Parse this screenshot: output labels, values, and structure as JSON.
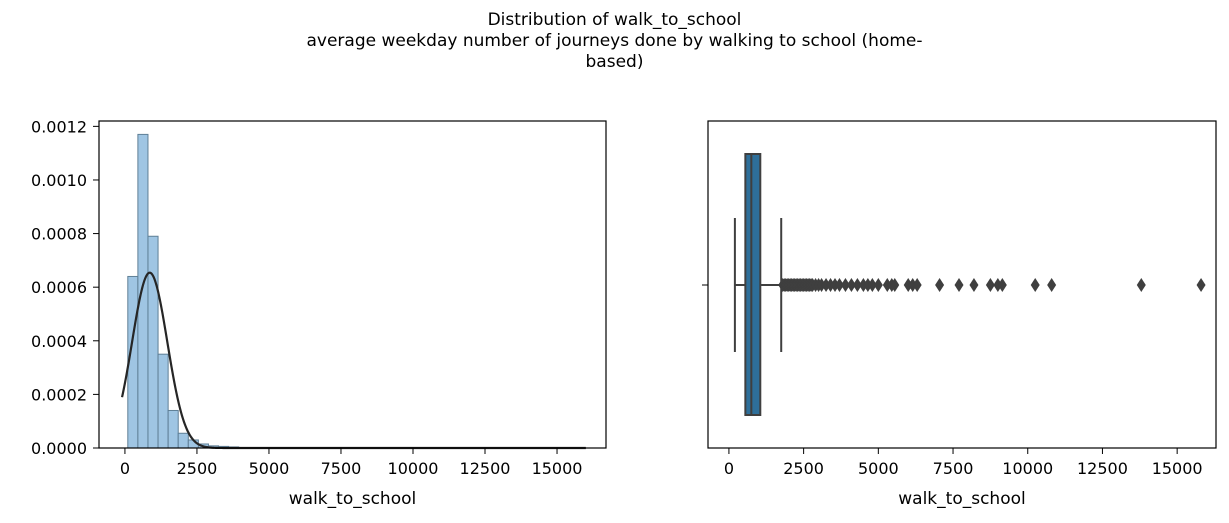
{
  "suptitle": {
    "line1": "Distribution of walk_to_school",
    "line2": "average weekday number of journeys done by walking to school (home-",
    "line3": "based)"
  },
  "chart_data": [
    {
      "type": "histogram",
      "xlabel": "walk_to_school",
      "ylabel": "",
      "xlim": [
        -900,
        16700
      ],
      "ylim": [
        0,
        0.00122
      ],
      "xticks": [
        0,
        2500,
        5000,
        7500,
        10000,
        12500,
        15000
      ],
      "xtick_labels": [
        "0",
        "2500",
        "5000",
        "7500",
        "10000",
        "12500",
        "15000"
      ],
      "yticks": [
        0,
        0.0002,
        0.0004,
        0.0006,
        0.0008,
        0.001,
        0.0012
      ],
      "ytick_labels": [
        "0.0000",
        "0.0002",
        "0.0004",
        "0.0006",
        "0.0008",
        "0.0010",
        "0.0012"
      ],
      "bar_color": "#9fc5e3",
      "bar_edge_color": "#5f7f96",
      "bins": [
        {
          "x0": 100,
          "x1": 450,
          "density": 0.00064
        },
        {
          "x0": 450,
          "x1": 800,
          "density": 0.00117
        },
        {
          "x0": 800,
          "x1": 1150,
          "density": 0.00079
        },
        {
          "x0": 1150,
          "x1": 1500,
          "density": 0.00035
        },
        {
          "x0": 1500,
          "x1": 1850,
          "density": 0.00014
        },
        {
          "x0": 1850,
          "x1": 2200,
          "density": 5.5e-05
        },
        {
          "x0": 2200,
          "x1": 2550,
          "density": 3e-05
        },
        {
          "x0": 2550,
          "x1": 2900,
          "density": 1.5e-05
        },
        {
          "x0": 2900,
          "x1": 3250,
          "density": 8e-06
        },
        {
          "x0": 3250,
          "x1": 3600,
          "density": 6e-06
        },
        {
          "x0": 3600,
          "x1": 3950,
          "density": 4e-06
        }
      ],
      "kde": {
        "color": "#262626",
        "mean": 860,
        "std": 610,
        "x_range": [
          -100,
          16000
        ]
      }
    },
    {
      "type": "boxplot",
      "xlabel": "walk_to_school",
      "xlim": [
        -700,
        16300
      ],
      "xticks": [
        0,
        2500,
        5000,
        7500,
        10000,
        12500,
        15000
      ],
      "xtick_labels": [
        "0",
        "2500",
        "5000",
        "7500",
        "10000",
        "12500",
        "15000"
      ],
      "box_color": "#2e6f9a",
      "line_color": "#3f3f3f",
      "whisker_low": 200,
      "q1": 550,
      "median": 750,
      "q3": 1050,
      "whisker_high": 1750,
      "outliers": [
        1800,
        1850,
        1900,
        1950,
        2000,
        2050,
        2100,
        2150,
        2200,
        2250,
        2300,
        2350,
        2400,
        2450,
        2500,
        2550,
        2600,
        2650,
        2700,
        2750,
        2800,
        2900,
        3000,
        3100,
        3250,
        3400,
        3550,
        3700,
        3900,
        4100,
        4300,
        4500,
        4650,
        4800,
        5000,
        5300,
        5450,
        5550,
        6000,
        6150,
        6300,
        7050,
        7700,
        8200,
        8750,
        9000,
        9150,
        10250,
        10800,
        13800,
        15800
      ]
    }
  ]
}
